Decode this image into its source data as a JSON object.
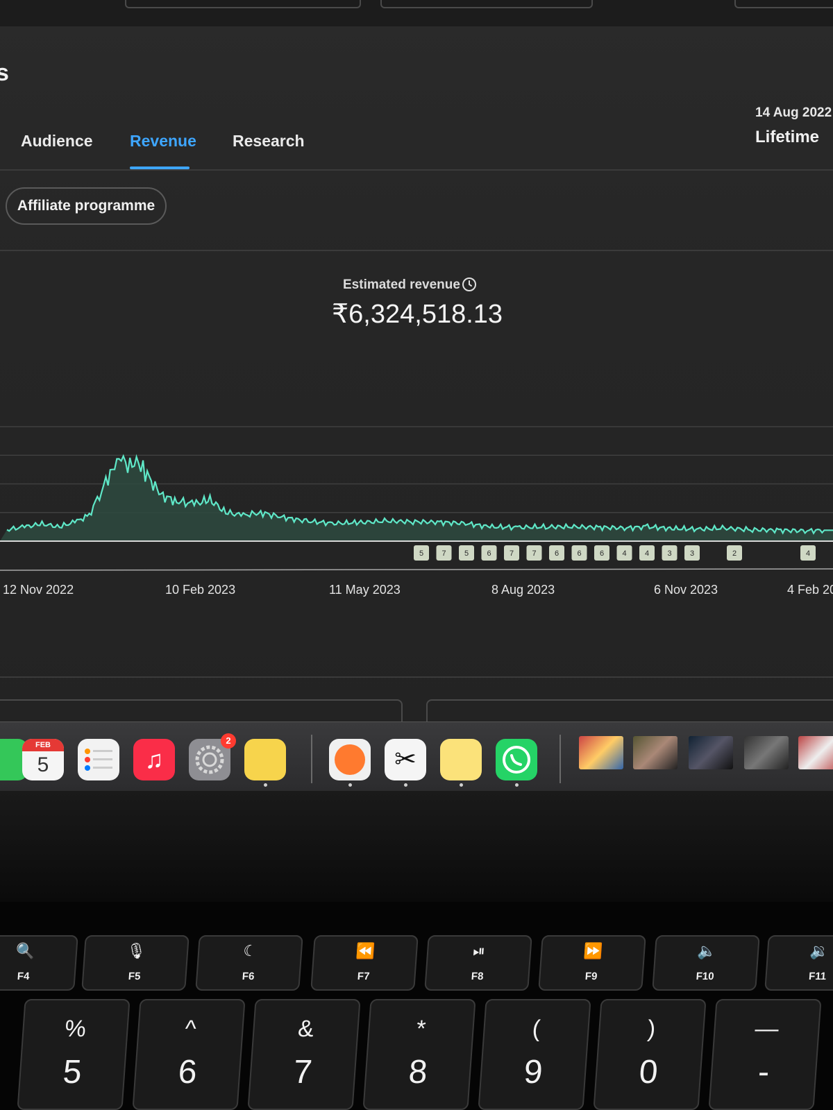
{
  "page": {
    "heading_fragment": "s"
  },
  "tabs": [
    {
      "label": "Audience",
      "active": false
    },
    {
      "label": "Revenue",
      "active": true
    },
    {
      "label": "Research",
      "active": false
    }
  ],
  "date_range": {
    "range_text": "14 Aug 2022",
    "period": "Lifetime"
  },
  "filters": {
    "chip_label": "Affiliate programme"
  },
  "metric": {
    "label": "Estimated revenue",
    "value": "₹6,324,518.13"
  },
  "colors": {
    "accent": "#3ea6ff",
    "line": "#5fe8c8",
    "fill": "#2e4a40"
  },
  "chart_data": {
    "type": "line",
    "title": "",
    "xlabel": "",
    "ylabel": "",
    "x_ticks": [
      "12 Nov 2022",
      "10 Feb 2023",
      "11 May 2023",
      "8 Aug 2023",
      "6 Nov 2023",
      "4 Feb 20"
    ],
    "x_range": [
      "2022-11-01",
      "2024-02-20"
    ],
    "ylim": [
      0,
      4
    ],
    "grid": true,
    "series": [
      {
        "x": [
          "2022-11-05",
          "2022-11-15",
          "2022-11-25",
          "2022-12-05",
          "2022-12-15",
          "2022-12-22",
          "2022-12-29",
          "2023-01-03",
          "2023-01-08",
          "2023-01-13",
          "2023-01-18",
          "2023-01-23",
          "2023-02-01",
          "2023-02-10",
          "2023-02-20",
          "2023-03-01",
          "2023-03-10",
          "2023-03-20",
          "2023-03-30",
          "2023-04-10",
          "2023-04-25",
          "2023-05-11",
          "2023-05-25",
          "2023-06-10",
          "2023-06-25",
          "2023-07-10",
          "2023-07-25",
          "2023-08-08",
          "2023-08-25",
          "2023-09-10",
          "2023-09-25",
          "2023-10-10",
          "2023-10-25",
          "2023-11-06",
          "2023-11-20",
          "2023-12-05",
          "2023-12-20",
          "2024-01-05",
          "2024-01-20",
          "2024-02-04",
          "2024-02-15"
        ],
        "values": [
          0.4,
          0.5,
          0.6,
          0.5,
          0.7,
          0.9,
          1.8,
          2.3,
          3.1,
          2.5,
          2.9,
          2.4,
          1.6,
          1.4,
          1.3,
          1.45,
          1.0,
          0.9,
          1.0,
          0.85,
          0.7,
          0.62,
          0.65,
          0.7,
          0.68,
          0.66,
          0.62,
          0.5,
          0.48,
          0.5,
          0.5,
          0.48,
          0.46,
          0.5,
          0.44,
          0.42,
          0.45,
          0.4,
          0.38,
          0.36,
          0.38
        ]
      }
    ],
    "markers": [
      "5",
      "7",
      "5",
      "6",
      "7",
      "7",
      "6",
      "6",
      "6",
      "4",
      "4",
      "3",
      "3",
      "2",
      "4"
    ]
  },
  "dock": {
    "calendar_month": "FEB",
    "calendar_day": "5",
    "settings_badge": "2"
  },
  "keyboard": {
    "fkeys": [
      {
        "glyph": "🔍",
        "label": "F4"
      },
      {
        "glyph": "🎙",
        "label": "F5"
      },
      {
        "glyph": "☾",
        "label": "F6"
      },
      {
        "glyph": "⏪",
        "label": "F7"
      },
      {
        "glyph": "⏯",
        "label": "F8"
      },
      {
        "glyph": "⏩",
        "label": "F9"
      },
      {
        "glyph": "🔈",
        "label": "F10"
      },
      {
        "glyph": "🔉",
        "label": "F11"
      }
    ],
    "numkeys": [
      {
        "sym": "%",
        "num": "5"
      },
      {
        "sym": "^",
        "num": "6"
      },
      {
        "sym": "&",
        "num": "7"
      },
      {
        "sym": "*",
        "num": "8"
      },
      {
        "sym": "(",
        "num": "9"
      },
      {
        "sym": ")",
        "num": "0"
      },
      {
        "sym": "—",
        "num": "-"
      }
    ]
  }
}
